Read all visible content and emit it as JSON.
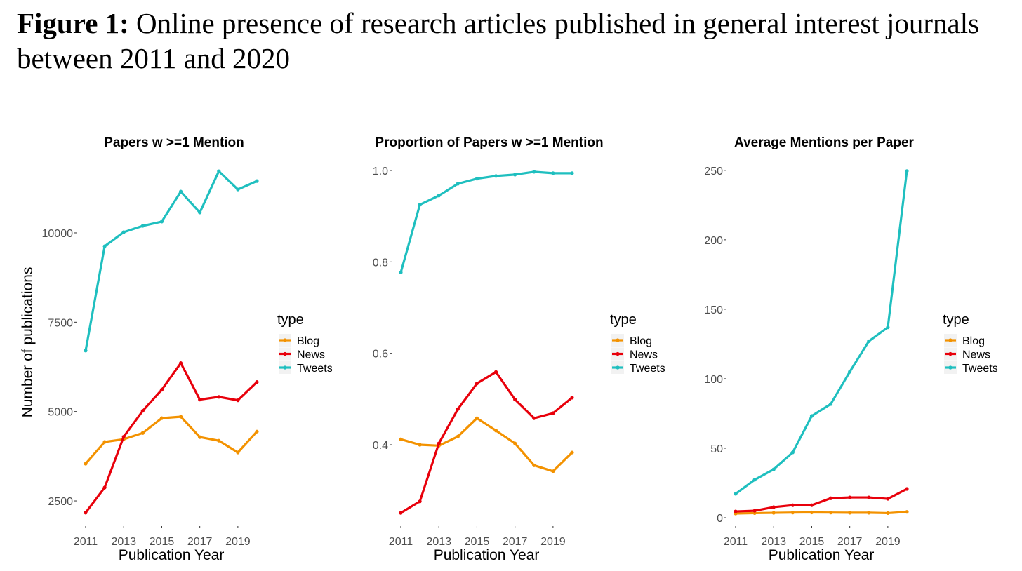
{
  "figure": {
    "label": "Figure 1:",
    "caption": "Online presence of research articles published in general interest journals between 2011 and 2020"
  },
  "series_colors": {
    "Blog": "#F39200",
    "News": "#E8000B",
    "Tweets": "#1FBFBF"
  },
  "chart_data": [
    {
      "type": "line",
      "title": "Papers w >=1 Mention",
      "xlabel": "Publication Year",
      "ylabel": "Number of publications",
      "x": [
        2011,
        2012,
        2013,
        2014,
        2015,
        2016,
        2017,
        2018,
        2019,
        2020
      ],
      "xticks": [
        2011,
        2013,
        2015,
        2017,
        2019
      ],
      "yticks": [
        2500,
        5000,
        7500,
        10000
      ],
      "ylim": [
        1794,
        12100
      ],
      "legend": {
        "title": "type",
        "placement": "right",
        "entries": [
          "Blog",
          "News",
          "Tweets"
        ]
      },
      "grid": false,
      "series": [
        {
          "name": "Blog",
          "values": [
            3540,
            4150,
            4225,
            4400,
            4815,
            4855,
            4285,
            4185,
            3855,
            4440
          ]
        },
        {
          "name": "News",
          "values": [
            2170,
            2875,
            4295,
            5020,
            5610,
            6355,
            5335,
            5410,
            5315,
            5825
          ]
        },
        {
          "name": "Tweets",
          "values": [
            6705,
            9625,
            10020,
            10195,
            10315,
            11155,
            10570,
            11725,
            11215,
            11450
          ]
        }
      ]
    },
    {
      "type": "line",
      "title": "Proportion of Papers w >=1 Mention",
      "xlabel": "Publication Year",
      "ylabel": "",
      "x": [
        2011,
        2012,
        2013,
        2014,
        2015,
        2016,
        2017,
        2018,
        2019,
        2020
      ],
      "xticks": [
        2011,
        2013,
        2015,
        2017,
        2019
      ],
      "yticks": [
        0.4,
        0.6,
        0.8,
        1.0
      ],
      "ytick_labels": [
        "0.4",
        "0.6",
        "0.8",
        "1.0"
      ],
      "ylim": [
        0.222,
        1.0276
      ],
      "legend": {
        "title": "type",
        "placement": "right",
        "entries": [
          "Blog",
          "News",
          "Tweets"
        ]
      },
      "grid": false,
      "series": [
        {
          "name": "Blog",
          "values": [
            0.412,
            0.4,
            0.398,
            0.418,
            0.458,
            0.431,
            0.403,
            0.355,
            0.342,
            0.383
          ]
        },
        {
          "name": "News",
          "values": [
            0.251,
            0.276,
            0.403,
            0.478,
            0.534,
            0.559,
            0.499,
            0.458,
            0.469,
            0.503
          ]
        },
        {
          "name": "Tweets",
          "values": [
            0.777,
            0.925,
            0.945,
            0.971,
            0.982,
            0.988,
            0.991,
            0.997,
            0.994,
            0.994
          ]
        }
      ]
    },
    {
      "type": "line",
      "title": "Average Mentions per Paper",
      "xlabel": "Publication Year",
      "ylabel": "",
      "x": [
        2011,
        2012,
        2013,
        2014,
        2015,
        2016,
        2017,
        2018,
        2019,
        2020
      ],
      "xticks": [
        2011,
        2013,
        2015,
        2017,
        2019
      ],
      "yticks": [
        0,
        50,
        100,
        150,
        200,
        250
      ],
      "ylim": [
        -6.06,
        259
      ],
      "legend": {
        "title": "type",
        "placement": "right",
        "entries": [
          "Blog",
          "News",
          "Tweets"
        ]
      },
      "grid": false,
      "series": [
        {
          "name": "Blog",
          "values": [
            3.0,
            3.3,
            3.5,
            3.7,
            3.8,
            3.7,
            3.6,
            3.6,
            3.3,
            4.2
          ]
        },
        {
          "name": "News",
          "values": [
            4.5,
            5.0,
            7.6,
            9.0,
            9.0,
            14.0,
            14.6,
            14.6,
            13.6,
            20.7
          ]
        },
        {
          "name": "Tweets",
          "values": [
            17.2,
            27.3,
            34.8,
            47.0,
            73.2,
            81.8,
            105.0,
            127.0,
            137.0,
            249.5
          ]
        }
      ]
    }
  ]
}
